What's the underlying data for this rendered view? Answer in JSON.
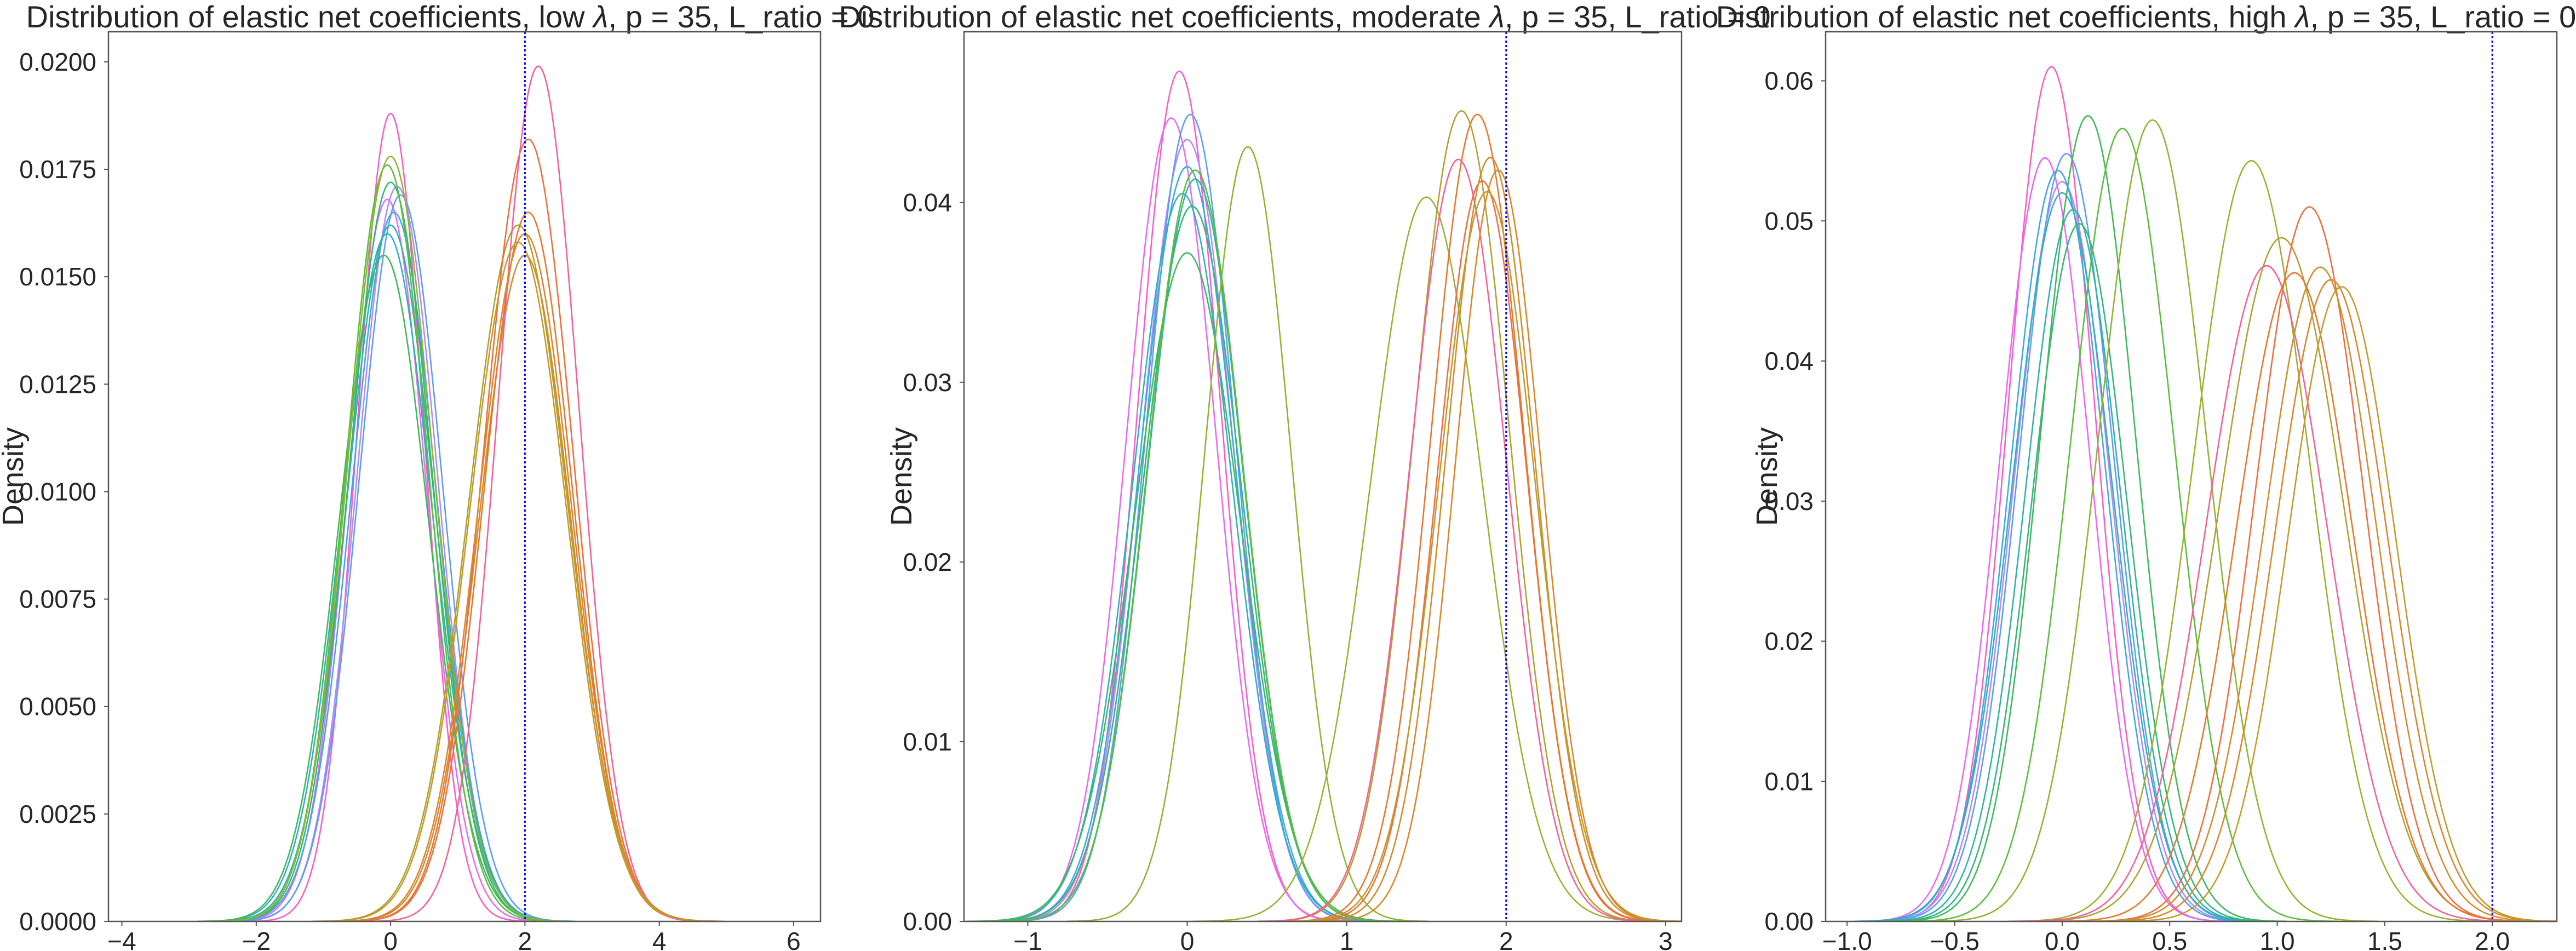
{
  "chart_data": [
    {
      "type": "line",
      "title_prefix": "Distribution of elastic net coefficients, low ",
      "title_suffix": ", p = 35, L_ratio = 0",
      "xlabel": "",
      "ylabel": "Density",
      "xlim": [
        -4.2,
        6.4
      ],
      "ylim": [
        0,
        0.0207
      ],
      "xticks": [
        -4,
        -2,
        0,
        2,
        4,
        6
      ],
      "xtick_labels": [
        "−4",
        "−2",
        "0",
        "2",
        "4",
        "6"
      ],
      "yticks": [
        0,
        0.0025,
        0.005,
        0.0075,
        0.01,
        0.0125,
        0.015,
        0.0175,
        0.02
      ],
      "ytick_labels": [
        "0.0000",
        "0.0025",
        "0.0050",
        "0.0075",
        "0.0100",
        "0.0125",
        "0.0150",
        "0.0175",
        "0.0200"
      ],
      "grid": false,
      "reference_line_x": 2,
      "series": [
        {
          "color": "#f75ec6",
          "mean": 0.0,
          "sd": 0.5,
          "peak": 0.0188
        },
        {
          "color": "#e76af2",
          "mean": -0.05,
          "sd": 0.58,
          "peak": 0.0168
        },
        {
          "color": "#b789f7",
          "mean": 0.1,
          "sd": 0.6,
          "peak": 0.0171
        },
        {
          "color": "#5d9df6",
          "mean": 0.15,
          "sd": 0.62,
          "peak": 0.0169
        },
        {
          "color": "#3fa8e0",
          "mean": 0.05,
          "sd": 0.63,
          "peak": 0.0165
        },
        {
          "color": "#2fafc2",
          "mean": -0.05,
          "sd": 0.66,
          "peak": 0.016
        },
        {
          "color": "#30b3a6",
          "mean": 0.0,
          "sd": 0.65,
          "peak": 0.0162
        },
        {
          "color": "#36b57f",
          "mean": 0.0,
          "sd": 0.62,
          "peak": 0.0172
        },
        {
          "color": "#40b85d",
          "mean": -0.1,
          "sd": 0.66,
          "peak": 0.0155
        },
        {
          "color": "#5cbd3e",
          "mean": -0.05,
          "sd": 0.61,
          "peak": 0.0176
        },
        {
          "color": "#8fb531",
          "mean": 0.0,
          "sd": 0.63,
          "peak": 0.0178
        },
        {
          "color": "#b2a030",
          "mean": 1.9,
          "sd": 0.73,
          "peak": 0.0162
        },
        {
          "color": "#cf8d2d",
          "mean": 2.0,
          "sd": 0.68,
          "peak": 0.0155
        },
        {
          "color": "#e3782e",
          "mean": 2.05,
          "sd": 0.66,
          "peak": 0.0165
        },
        {
          "color": "#ee6e3f",
          "mean": 2.05,
          "sd": 0.66,
          "peak": 0.0182
        },
        {
          "color": "#f4609a",
          "mean": 2.2,
          "sd": 0.6,
          "peak": 0.0199
        },
        {
          "color": "#d9872b",
          "mean": 2.0,
          "sd": 0.69,
          "peak": 0.016
        },
        {
          "color": "#c49a2a",
          "mean": 1.9,
          "sd": 0.72,
          "peak": 0.0158
        }
      ]
    },
    {
      "type": "line",
      "title_prefix": "Distribution of elastic net coefficients, moderate ",
      "title_suffix": ", p = 35, L_ratio = 0",
      "xlabel": "",
      "ylabel": "Density",
      "xlim": [
        -1.4,
        3.1
      ],
      "ylim": [
        0,
        0.0495
      ],
      "xticks": [
        -1,
        0,
        1,
        2,
        3
      ],
      "xtick_labels": [
        "−1",
        "0",
        "1",
        "2",
        "3"
      ],
      "yticks": [
        0,
        0.01,
        0.02,
        0.03,
        0.04
      ],
      "ytick_labels": [
        "0.00",
        "0.01",
        "0.02",
        "0.03",
        "0.04"
      ],
      "grid": false,
      "reference_line_x": 2,
      "series": [
        {
          "color": "#f75ec6",
          "mean": -0.05,
          "sd": 0.26,
          "peak": 0.0473
        },
        {
          "color": "#e76af2",
          "mean": -0.1,
          "sd": 0.28,
          "peak": 0.0447
        },
        {
          "color": "#b789f7",
          "mean": 0.0,
          "sd": 0.29,
          "peak": 0.0435
        },
        {
          "color": "#5d9df6",
          "mean": 0.02,
          "sd": 0.28,
          "peak": 0.0449
        },
        {
          "color": "#3fa8e0",
          "mean": 0.0,
          "sd": 0.3,
          "peak": 0.042
        },
        {
          "color": "#2fafc2",
          "mean": -0.03,
          "sd": 0.31,
          "peak": 0.0405
        },
        {
          "color": "#30b3a6",
          "mean": 0.05,
          "sd": 0.3,
          "peak": 0.0413
        },
        {
          "color": "#36b57f",
          "mean": 0.03,
          "sd": 0.31,
          "peak": 0.0398
        },
        {
          "color": "#40b85d",
          "mean": 0.0,
          "sd": 0.33,
          "peak": 0.0372
        },
        {
          "color": "#5cbd3e",
          "mean": 0.05,
          "sd": 0.3,
          "peak": 0.0418
        },
        {
          "color": "#8fb531",
          "mean": 0.38,
          "sd": 0.27,
          "peak": 0.0431
        },
        {
          "color": "#9fb02f",
          "mean": 1.5,
          "sd": 0.35,
          "peak": 0.0403
        },
        {
          "color": "#b2a030",
          "mean": 1.72,
          "sd": 0.3,
          "peak": 0.0451
        },
        {
          "color": "#f4609a",
          "mean": 1.7,
          "sd": 0.3,
          "peak": 0.0424
        },
        {
          "color": "#ee6e3f",
          "mean": 1.85,
          "sd": 0.28,
          "peak": 0.0412
        },
        {
          "color": "#e3782e",
          "mean": 1.82,
          "sd": 0.29,
          "peak": 0.0449
        },
        {
          "color": "#cf8d2d",
          "mean": 1.9,
          "sd": 0.28,
          "peak": 0.0425
        },
        {
          "color": "#d9872b",
          "mean": 1.95,
          "sd": 0.27,
          "peak": 0.0418
        },
        {
          "color": "#c49a2a",
          "mean": 1.88,
          "sd": 0.3,
          "peak": 0.0406
        }
      ]
    },
    {
      "type": "line",
      "title_prefix": "Distribution of elastic net coefficients, high ",
      "title_suffix": ", p = 35, L_ratio = 0",
      "xlabel": "",
      "ylabel": "Density",
      "xlim": [
        -1.1,
        2.3
      ],
      "ylim": [
        0,
        0.0635
      ],
      "xticks": [
        -1.0,
        -0.5,
        0.0,
        0.5,
        1.0,
        1.5,
        2.0
      ],
      "xtick_labels": [
        "−1.0",
        "−0.5",
        "0.0",
        "0.5",
        "1.0",
        "1.5",
        "2.0"
      ],
      "yticks": [
        0,
        0.01,
        0.02,
        0.03,
        0.04,
        0.05,
        0.06
      ],
      "ytick_labels": [
        "0.00",
        "0.01",
        "0.02",
        "0.03",
        "0.04",
        "0.05",
        "0.06"
      ],
      "grid": false,
      "reference_line_x": 2,
      "series": [
        {
          "color": "#f75ec6",
          "mean": -0.05,
          "sd": 0.2,
          "peak": 0.061
        },
        {
          "color": "#e76af2",
          "mean": -0.08,
          "sd": 0.21,
          "peak": 0.0545
        },
        {
          "color": "#b789f7",
          "mean": 0.0,
          "sd": 0.22,
          "peak": 0.0528
        },
        {
          "color": "#5d9df6",
          "mean": 0.02,
          "sd": 0.22,
          "peak": 0.0548
        },
        {
          "color": "#3fa8e0",
          "mean": -0.02,
          "sd": 0.22,
          "peak": 0.0536
        },
        {
          "color": "#2fafc2",
          "mean": 0.0,
          "sd": 0.23,
          "peak": 0.052
        },
        {
          "color": "#30b3a6",
          "mean": 0.05,
          "sd": 0.22,
          "peak": 0.0508
        },
        {
          "color": "#36b57f",
          "mean": 0.08,
          "sd": 0.22,
          "peak": 0.0498
        },
        {
          "color": "#40b85d",
          "mean": 0.12,
          "sd": 0.22,
          "peak": 0.0575
        },
        {
          "color": "#5cbd3e",
          "mean": 0.28,
          "sd": 0.24,
          "peak": 0.0566
        },
        {
          "color": "#8fb531",
          "mean": 0.42,
          "sd": 0.25,
          "peak": 0.0572
        },
        {
          "color": "#9fb02f",
          "mean": 0.88,
          "sd": 0.27,
          "peak": 0.0543
        },
        {
          "color": "#b2a030",
          "mean": 1.02,
          "sd": 0.29,
          "peak": 0.0488
        },
        {
          "color": "#f4609a",
          "mean": 0.95,
          "sd": 0.28,
          "peak": 0.0468
        },
        {
          "color": "#ee6e3f",
          "mean": 1.15,
          "sd": 0.25,
          "peak": 0.051
        },
        {
          "color": "#e3782e",
          "mean": 1.08,
          "sd": 0.27,
          "peak": 0.0463
        },
        {
          "color": "#cf8d2d",
          "mean": 1.2,
          "sd": 0.26,
          "peak": 0.0467
        },
        {
          "color": "#d9872b",
          "mean": 1.25,
          "sd": 0.26,
          "peak": 0.0458
        },
        {
          "color": "#c49a2a",
          "mean": 1.3,
          "sd": 0.25,
          "peak": 0.0453
        }
      ]
    }
  ],
  "lambda_symbol": "λ",
  "colors": {
    "reference_line": "#0000ff",
    "frame": "#555555",
    "text": "#262626"
  }
}
